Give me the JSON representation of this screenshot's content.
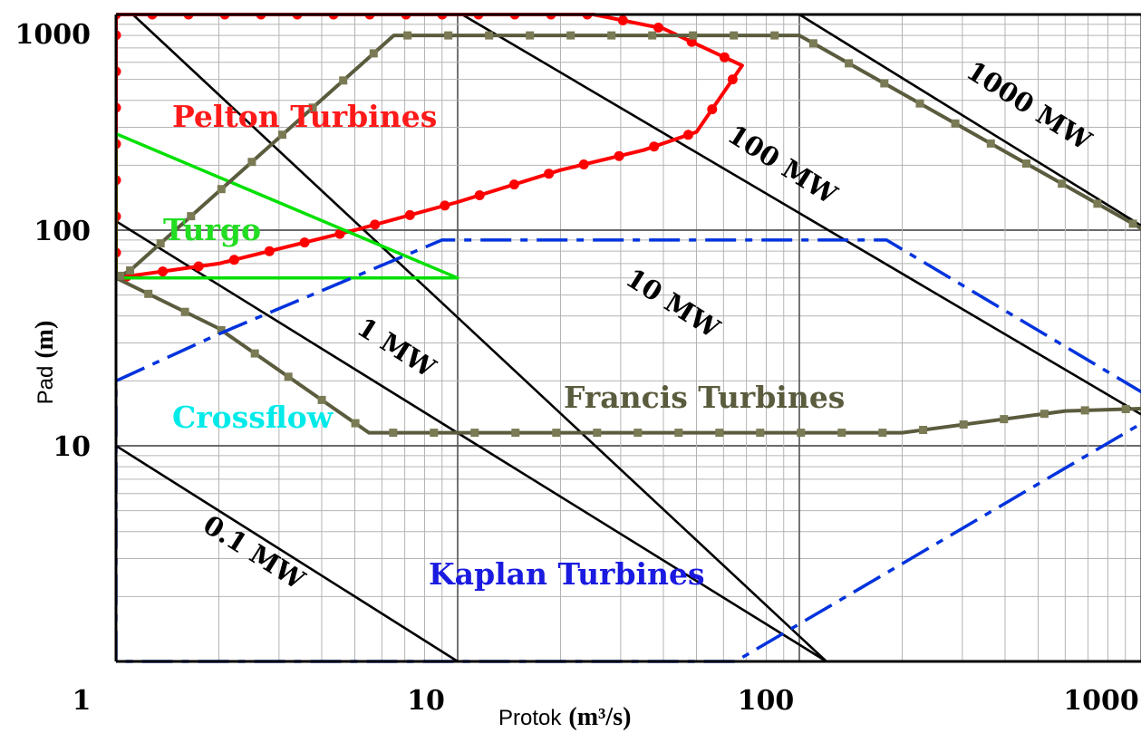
{
  "chart_data": {
    "type": "line",
    "x_scale": "log",
    "y_scale": "log",
    "xlim": [
      1,
      1000
    ],
    "ylim": [
      1,
      1000
    ],
    "grid": true,
    "x_ticks": [
      "1",
      "10",
      "100",
      "1000"
    ],
    "y_ticks": [
      "1000",
      "100",
      "10"
    ],
    "xlabel": {
      "word": "Protok",
      "unit": "(m³/s)"
    },
    "ylabel": {
      "word": "Pad",
      "unit": "(m)"
    },
    "power_lines": [
      {
        "label": "0.1 MW",
        "points": [
          [
            1,
            10
          ],
          [
            10,
            1
          ]
        ]
      },
      {
        "label": "1 MW",
        "points": [
          [
            1,
            110
          ],
          [
            120,
            1
          ]
        ]
      },
      {
        "label": "10 MW",
        "points": [
          [
            1.12,
            1000
          ],
          [
            120,
            1
          ]
        ]
      },
      {
        "label": "100 MW",
        "points": [
          [
            10.3,
            1000
          ],
          [
            1000,
            14
          ]
        ]
      },
      {
        "label": "1000 MW",
        "points": [
          [
            100,
            1000
          ],
          [
            1000,
            105
          ]
        ]
      }
    ],
    "series": [
      {
        "name": "Pelton Turbines",
        "color": "#ff0000",
        "style": "solid-dotted",
        "points": [
          [
            1,
            1000
          ],
          [
            25,
            1000
          ],
          [
            40,
            860
          ],
          [
            68,
            580
          ],
          [
            50,
            285
          ],
          [
            35,
            235
          ],
          [
            20,
            190
          ],
          [
            10,
            135
          ],
          [
            5,
            100
          ],
          [
            2,
            70
          ],
          [
            1,
            60
          ],
          [
            1,
            1000
          ]
        ]
      },
      {
        "name": "Turgo",
        "color": "#00e000",
        "style": "solid",
        "points": [
          [
            1,
            280
          ],
          [
            10,
            60
          ],
          [
            1,
            60
          ],
          [
            1,
            280
          ]
        ]
      },
      {
        "name": "Francis Turbines",
        "color": "#5b5b3e",
        "style": "solid-square-dotted",
        "points": [
          [
            1.1,
            65
          ],
          [
            6.5,
            800
          ],
          [
            100,
            800
          ],
          [
            1150,
            90
          ],
          [
            1200,
            78
          ],
          [
            1200,
            15
          ],
          [
            600,
            14.5
          ],
          [
            200,
            11.5
          ],
          [
            5.5,
            11.5
          ],
          [
            2,
            35
          ],
          [
            1,
            60
          ],
          [
            1.1,
            65
          ]
        ]
      },
      {
        "name": "Kaplan Turbines",
        "color": "#0033dd",
        "style": "dashed",
        "points": [
          [
            1,
            1
          ],
          [
            1,
            20
          ],
          [
            2,
            33
          ],
          [
            9,
            90
          ],
          [
            180,
            90
          ],
          [
            1200,
            15
          ],
          [
            65,
            1
          ],
          [
            1,
            1
          ]
        ]
      },
      {
        "name": "Crossflow",
        "color": "#00f0f0",
        "style": "label-only",
        "points": []
      }
    ],
    "annotations": [
      {
        "text": "Pelton Turbines",
        "color": "#ff1a1a"
      },
      {
        "text": "Turgo",
        "color": "#22dd22"
      },
      {
        "text": "Crossflow",
        "color": "#00eaea"
      },
      {
        "text": "Francis Turbines",
        "color": "#5b5b3e"
      },
      {
        "text": "Kaplan Turbines",
        "color": "#1a1ae0"
      }
    ]
  }
}
